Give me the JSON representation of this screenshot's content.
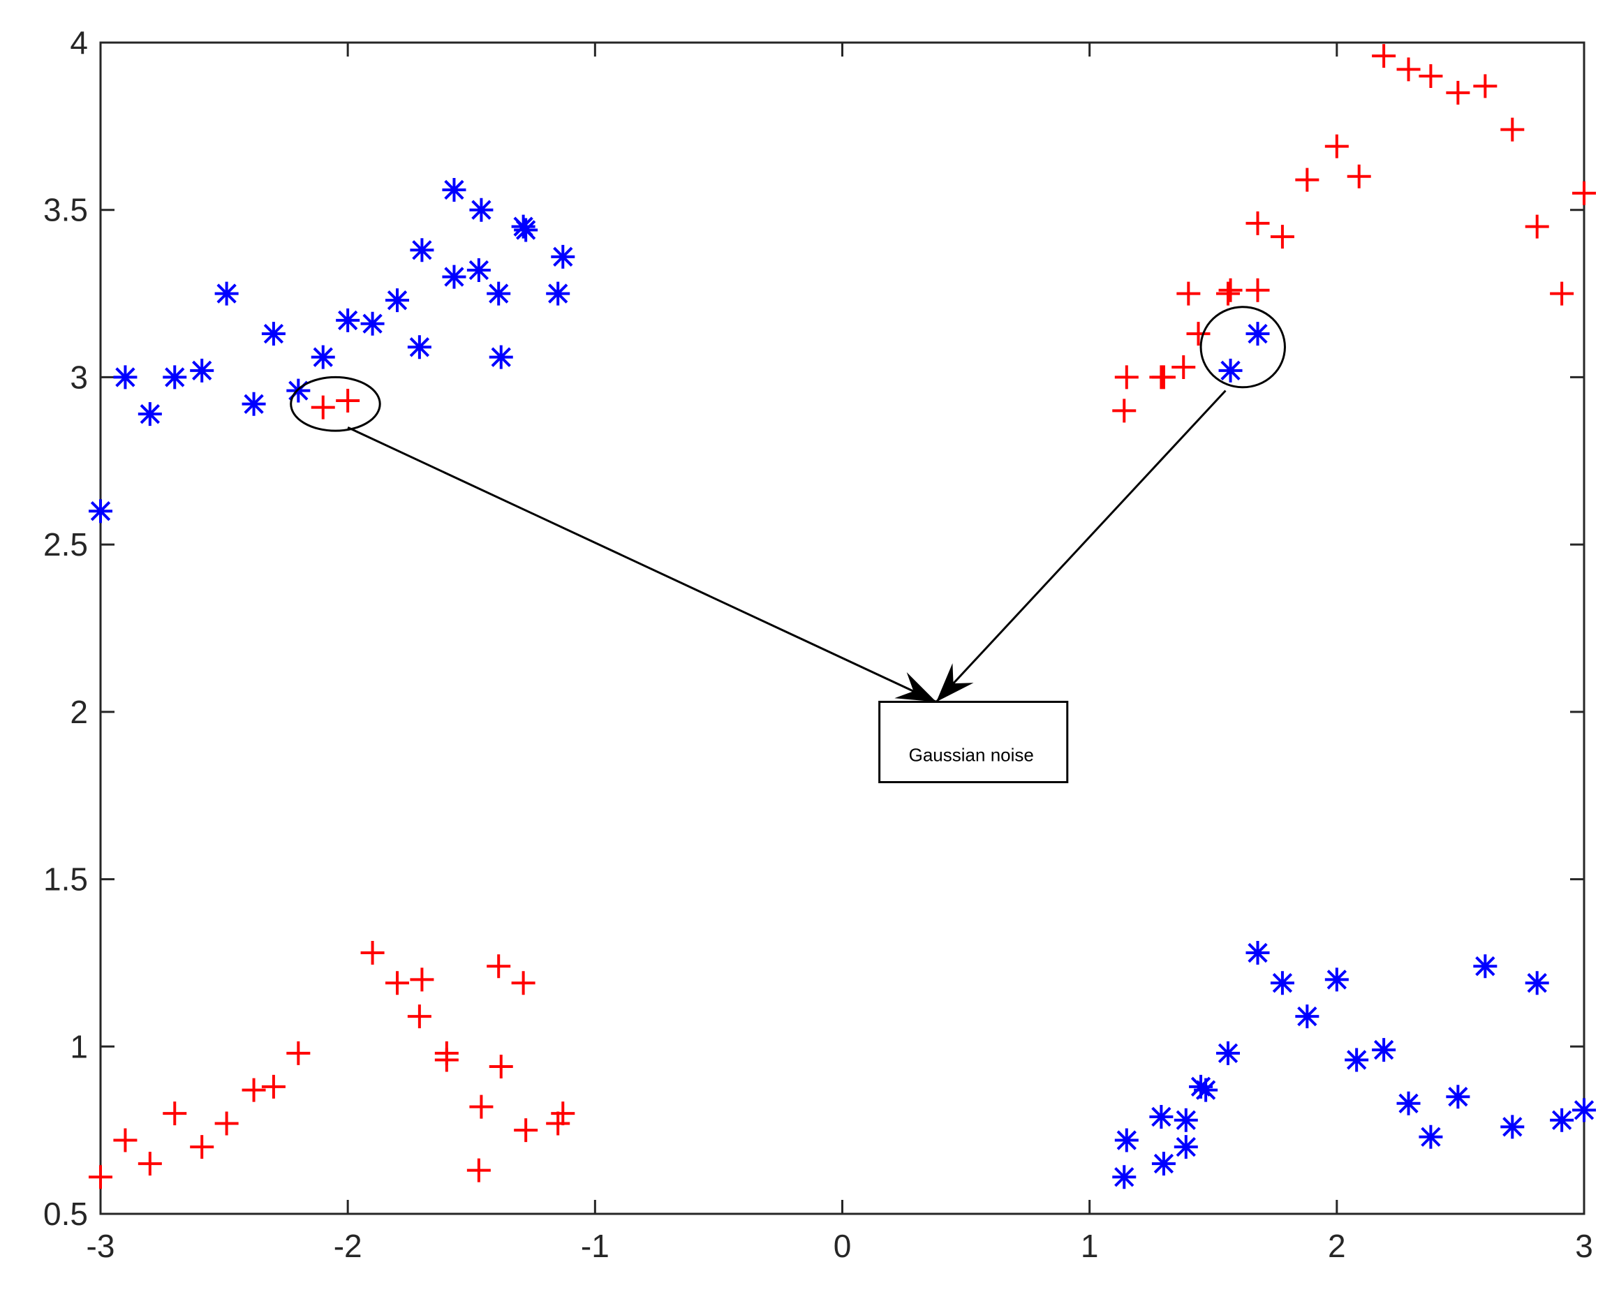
{
  "chart_data": {
    "type": "scatter",
    "title": "",
    "xlabel": "",
    "ylabel": "",
    "xlim": [
      -3,
      3
    ],
    "ylim": [
      0.5,
      4
    ],
    "grid": false,
    "xticks": [
      "-3",
      "-2",
      "-1",
      "0",
      "1",
      "2",
      "3"
    ],
    "yticks": [
      "0.5",
      "1",
      "1.5",
      "2",
      "2.5",
      "3",
      "3.5",
      "4"
    ],
    "series": [
      {
        "marker": "asterisk",
        "color": "#0000ff",
        "points": [
          [
            -3,
            2.6
          ],
          [
            -2.9,
            3.0
          ],
          [
            -2.8,
            2.89
          ],
          [
            -2.7,
            3.0
          ],
          [
            -2.59,
            3.02
          ],
          [
            -2.49,
            3.25
          ],
          [
            -2.38,
            2.92
          ],
          [
            -2.3,
            3.13
          ],
          [
            -2.2,
            2.96
          ],
          [
            -2.1,
            3.06
          ],
          [
            -2.0,
            3.17
          ],
          [
            -1.9,
            3.16
          ],
          [
            -1.8,
            3.23
          ],
          [
            -1.7,
            3.38
          ],
          [
            -1.71,
            3.09
          ],
          [
            -1.57,
            3.56
          ],
          [
            -1.57,
            3.3
          ],
          [
            -1.46,
            3.5
          ],
          [
            -1.47,
            3.32
          ],
          [
            -1.39,
            3.25
          ],
          [
            -1.38,
            3.06
          ],
          [
            -1.29,
            3.45
          ],
          [
            -1.28,
            3.44
          ],
          [
            -1.13,
            3.36
          ],
          [
            -1.15,
            3.25
          ],
          [
            1.57,
            3.02
          ],
          [
            1.68,
            3.13
          ],
          [
            1.14,
            0.61
          ],
          [
            1.15,
            0.72
          ],
          [
            1.29,
            0.79
          ],
          [
            1.3,
            0.65
          ],
          [
            1.39,
            0.78
          ],
          [
            1.39,
            0.7
          ],
          [
            1.45,
            0.88
          ],
          [
            1.47,
            0.87
          ],
          [
            1.56,
            0.98
          ],
          [
            1.68,
            1.28
          ],
          [
            1.78,
            1.19
          ],
          [
            1.88,
            1.09
          ],
          [
            2.0,
            1.2
          ],
          [
            2.08,
            0.96
          ],
          [
            2.19,
            0.99
          ],
          [
            2.29,
            0.83
          ],
          [
            2.38,
            0.73
          ],
          [
            2.49,
            0.85
          ],
          [
            2.6,
            1.24
          ],
          [
            2.71,
            0.76
          ],
          [
            2.81,
            1.19
          ],
          [
            2.91,
            0.78
          ],
          [
            3.0,
            0.81
          ]
        ]
      },
      {
        "marker": "plus",
        "color": "#ff0000",
        "points": [
          [
            -2.1,
            2.91
          ],
          [
            -2.0,
            2.93
          ],
          [
            1.14,
            2.9
          ],
          [
            1.15,
            3.0
          ],
          [
            1.29,
            3.0
          ],
          [
            1.3,
            3.0
          ],
          [
            1.38,
            3.03
          ],
          [
            1.4,
            3.25
          ],
          [
            1.44,
            3.13
          ],
          [
            1.56,
            3.25
          ],
          [
            1.57,
            3.26
          ],
          [
            1.68,
            3.26
          ],
          [
            1.68,
            3.46
          ],
          [
            1.78,
            3.42
          ],
          [
            1.88,
            3.59
          ],
          [
            2.0,
            3.69
          ],
          [
            2.09,
            3.6
          ],
          [
            2.19,
            3.96
          ],
          [
            2.29,
            3.92
          ],
          [
            2.38,
            3.9
          ],
          [
            2.49,
            3.85
          ],
          [
            2.6,
            3.87
          ],
          [
            2.71,
            3.74
          ],
          [
            2.81,
            3.45
          ],
          [
            2.91,
            3.25
          ],
          [
            3.0,
            3.55
          ],
          [
            -3,
            0.61
          ],
          [
            -2.9,
            0.72
          ],
          [
            -2.8,
            0.65
          ],
          [
            -2.7,
            0.8
          ],
          [
            -2.59,
            0.7
          ],
          [
            -2.49,
            0.77
          ],
          [
            -2.38,
            0.87
          ],
          [
            -2.3,
            0.88
          ],
          [
            -2.2,
            0.98
          ],
          [
            -1.9,
            1.28
          ],
          [
            -1.8,
            1.19
          ],
          [
            -1.7,
            1.2
          ],
          [
            -1.71,
            1.09
          ],
          [
            -1.6,
            0.98
          ],
          [
            -1.6,
            0.96
          ],
          [
            -1.46,
            0.82
          ],
          [
            -1.47,
            0.63
          ],
          [
            -1.39,
            1.24
          ],
          [
            -1.38,
            0.94
          ],
          [
            -1.29,
            1.19
          ],
          [
            -1.28,
            0.75
          ],
          [
            -1.13,
            0.8
          ],
          [
            -1.15,
            0.77
          ]
        ]
      }
    ],
    "annotations": {
      "text": "Gaussian noise",
      "text_box": {
        "x": [
          0.15,
          0.91
        ],
        "y": [
          1.79,
          2.03
        ]
      },
      "ellipses": [
        {
          "center": [
            -2.05,
            2.92
          ],
          "rx": 0.18,
          "ry": 0.08
        },
        {
          "center": [
            1.62,
            3.09
          ],
          "rx": 0.17,
          "ry": 0.12
        }
      ],
      "arrows": [
        {
          "from": [
            -2.0,
            2.85
          ],
          "to": [
            0.38,
            2.03
          ]
        },
        {
          "from": [
            1.55,
            2.96
          ],
          "to": [
            0.38,
            2.03
          ]
        }
      ]
    }
  }
}
